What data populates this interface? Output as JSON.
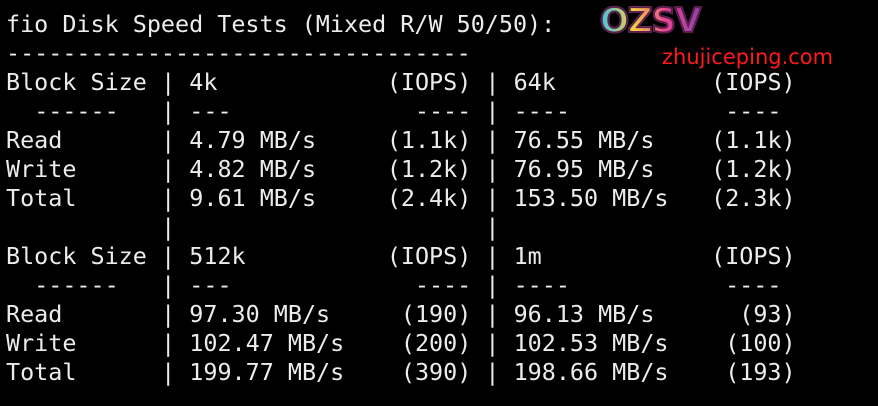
{
  "title": "fio Disk Speed Tests (Mixed R/W 50/50):",
  "divider": "---------------------------------",
  "column_separator": "|",
  "header_label": "Block Size",
  "iops_label": "(IOPS)",
  "header_underline": {
    "label": "------",
    "size": "---",
    "size_wide": "----",
    "iops": "----"
  },
  "blocks": [
    {
      "sizes": [
        "4k",
        "64k"
      ],
      "rows": [
        {
          "label": "Read",
          "cells": [
            {
              "speed": "4.79 MB/s",
              "iops": "(1.1k)"
            },
            {
              "speed": "76.55 MB/s",
              "iops": "(1.1k)"
            }
          ]
        },
        {
          "label": "Write",
          "cells": [
            {
              "speed": "4.82 MB/s",
              "iops": "(1.2k)"
            },
            {
              "speed": "76.95 MB/s",
              "iops": "(1.2k)"
            }
          ]
        },
        {
          "label": "Total",
          "cells": [
            {
              "speed": "9.61 MB/s",
              "iops": "(2.4k)"
            },
            {
              "speed": "153.50 MB/s",
              "iops": "(2.3k)"
            }
          ]
        }
      ]
    },
    {
      "sizes": [
        "512k",
        "1m"
      ],
      "rows": [
        {
          "label": "Read",
          "cells": [
            {
              "speed": "97.30 MB/s",
              "iops": "(190)"
            },
            {
              "speed": "96.13 MB/s",
              "iops": "(93)"
            }
          ]
        },
        {
          "label": "Write",
          "cells": [
            {
              "speed": "102.47 MB/s",
              "iops": "(200)"
            },
            {
              "speed": "102.53 MB/s",
              "iops": "(100)"
            }
          ]
        },
        {
          "label": "Total",
          "cells": [
            {
              "speed": "199.77 MB/s",
              "iops": "(390)"
            },
            {
              "speed": "198.66 MB/s",
              "iops": "(193)"
            }
          ]
        }
      ]
    }
  ],
  "watermarks": {
    "logo": "OZSV",
    "site": "zhujiceping.com",
    "site_color": "#ff1a1a"
  }
}
